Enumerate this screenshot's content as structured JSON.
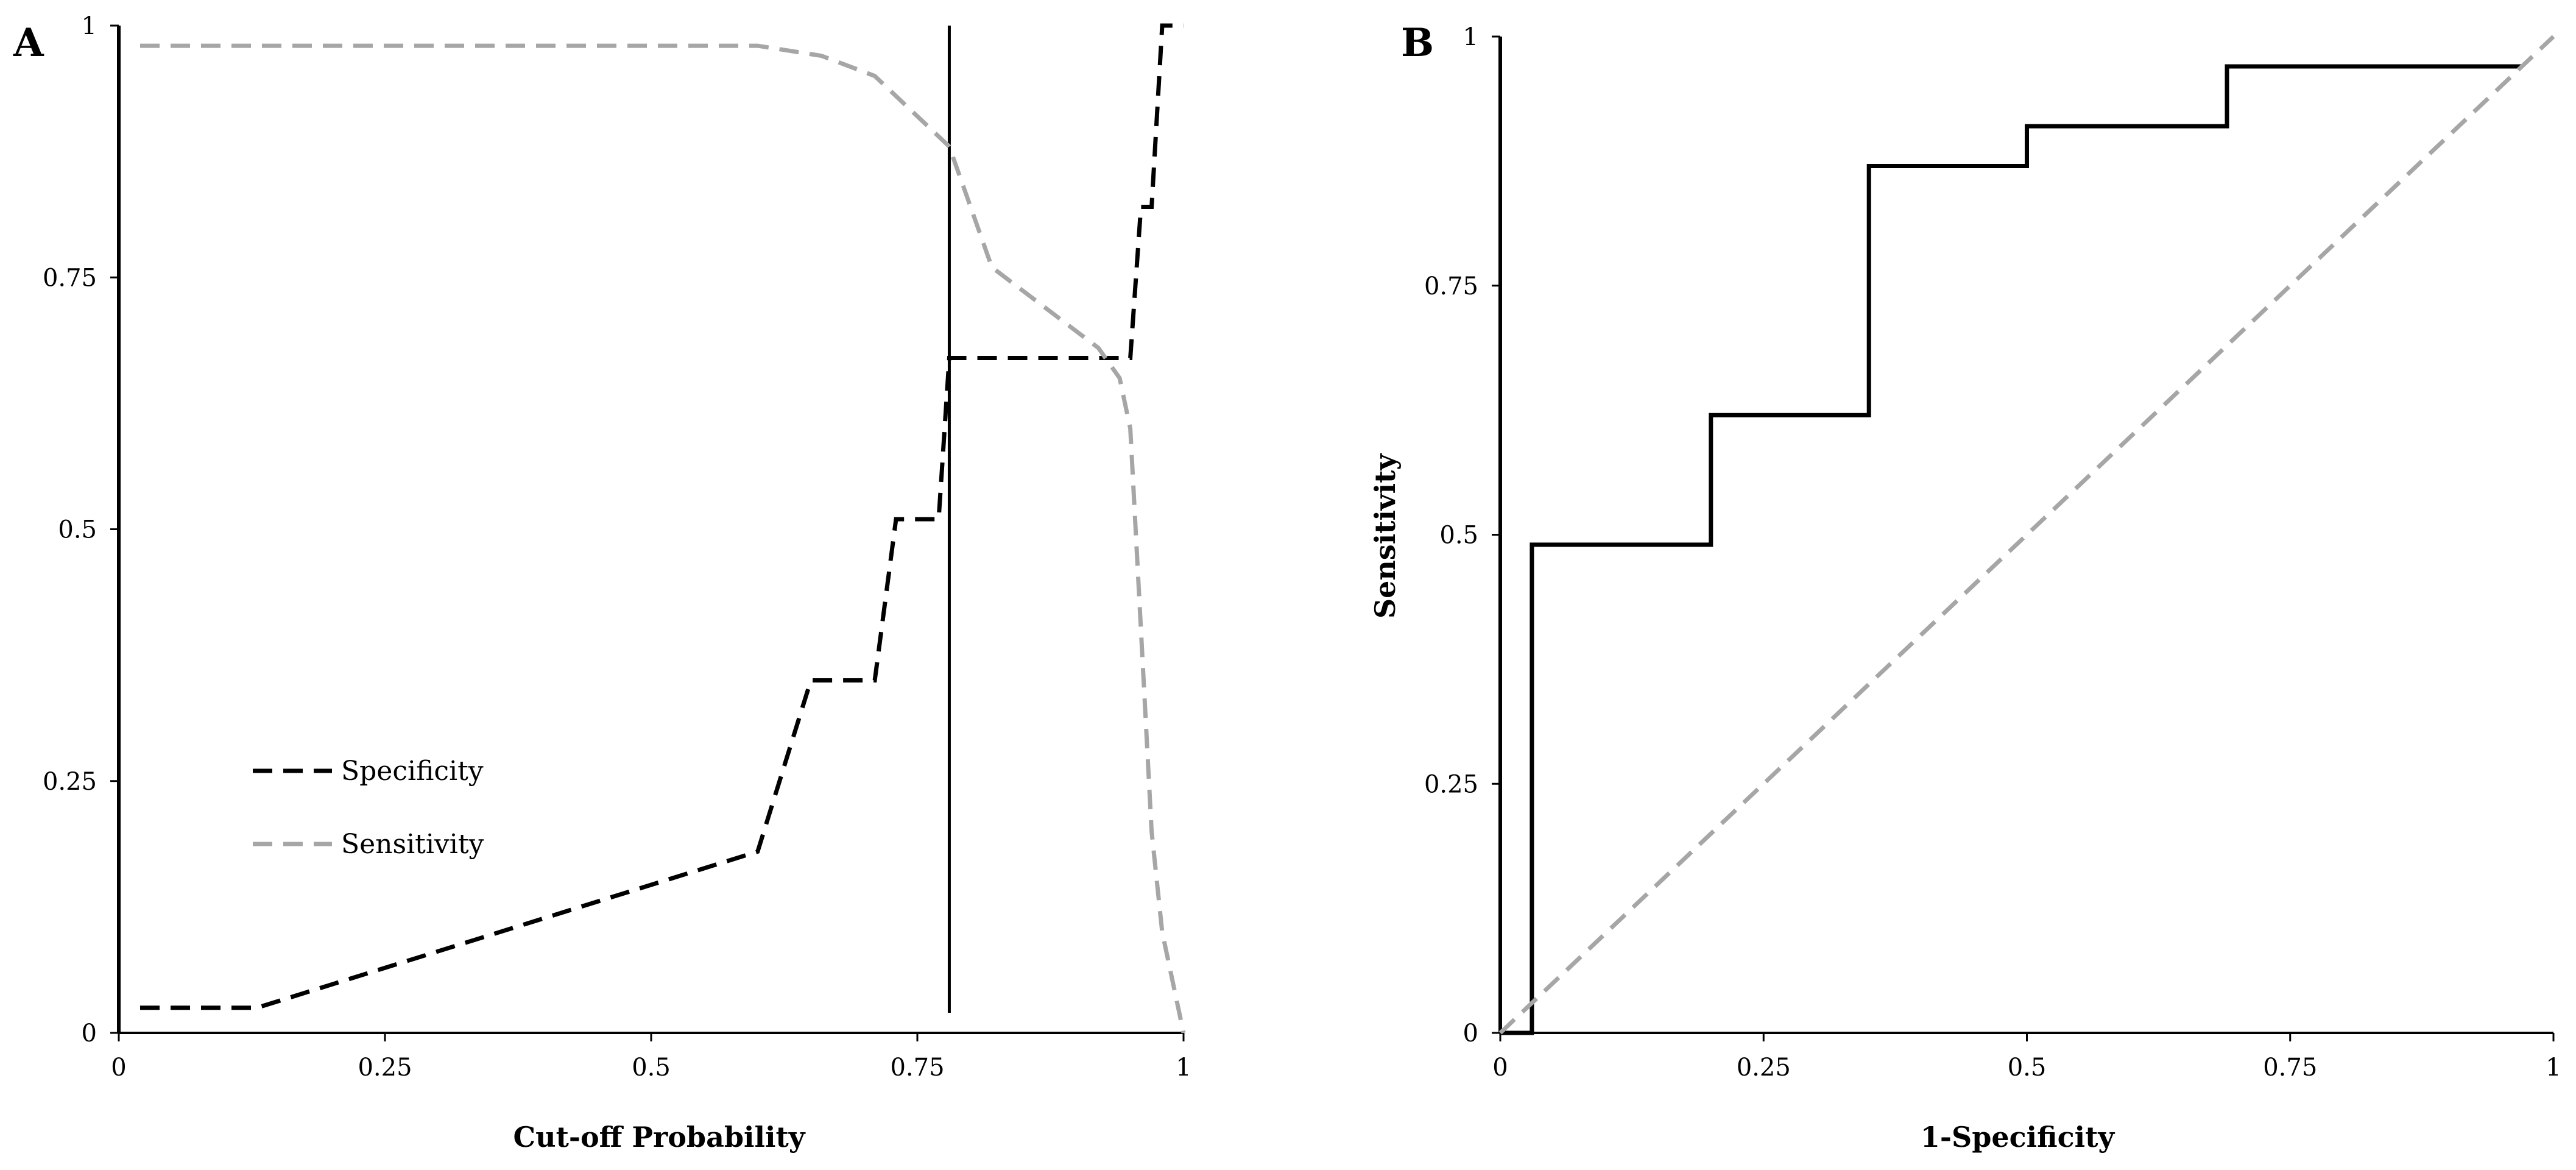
{
  "colors": {
    "black": "#000000",
    "gray": "#a6a6a6"
  },
  "chart_data": [
    {
      "panel": "A",
      "type": "line",
      "xlabel": "Cut-off Probability",
      "ylabel": "",
      "xlim": [
        0,
        1
      ],
      "ylim": [
        0,
        1
      ],
      "xticks": [
        "0",
        "0.25",
        "0.5",
        "0.75",
        "1"
      ],
      "yticks": [
        "0",
        "0.25",
        "0.5",
        "0.75",
        "1"
      ],
      "grid": false,
      "legend_position": "lower-left",
      "series": [
        {
          "name": "Specificity",
          "style": "dashed",
          "color": "#000000",
          "x": [
            0.02,
            0.13,
            0.6,
            0.65,
            0.71,
            0.73,
            0.77,
            0.78,
            0.78,
            0.95,
            0.96,
            0.97,
            0.98,
            0.99,
            1.0
          ],
          "y": [
            0.025,
            0.025,
            0.18,
            0.35,
            0.35,
            0.51,
            0.51,
            0.67,
            0.67,
            0.67,
            0.82,
            0.82,
            1.0,
            1.0,
            1.0
          ]
        },
        {
          "name": "Sensitivity",
          "style": "dashed",
          "color": "#a6a6a6",
          "x": [
            0.02,
            0.6,
            0.66,
            0.71,
            0.78,
            0.82,
            0.92,
            0.94,
            0.95,
            0.97,
            0.98,
            1.0
          ],
          "y": [
            0.98,
            0.98,
            0.97,
            0.95,
            0.88,
            0.76,
            0.68,
            0.65,
            0.6,
            0.2,
            0.1,
            0.0
          ]
        }
      ],
      "reference_line": {
        "type": "vertical",
        "x": 0.78,
        "y_range": [
          0.02,
          1.0
        ],
        "color": "#000000"
      }
    },
    {
      "panel": "B",
      "type": "line",
      "xlabel": "1-Specificity",
      "ylabel": "Sensitivity",
      "xlim": [
        0,
        1
      ],
      "ylim": [
        0,
        1
      ],
      "xticks": [
        "0",
        "0.25",
        "0.5",
        "0.75",
        "1"
      ],
      "yticks": [
        "0",
        "0.25",
        "0.5",
        "0.75",
        "1"
      ],
      "grid": false,
      "series": [
        {
          "style": "solid",
          "color": "#000000",
          "x": [
            0.0,
            0.03,
            0.03,
            0.2,
            0.2,
            0.35,
            0.35,
            0.5,
            0.5,
            0.69,
            0.69,
            0.97
          ],
          "y": [
            0.0,
            0.0,
            0.49,
            0.49,
            0.62,
            0.62,
            0.87,
            0.87,
            0.91,
            0.91,
            0.97,
            0.97
          ]
        },
        {
          "style": "dashed",
          "color": "#a6a6a6",
          "x": [
            0,
            1
          ],
          "y": [
            0,
            1
          ]
        }
      ]
    }
  ]
}
